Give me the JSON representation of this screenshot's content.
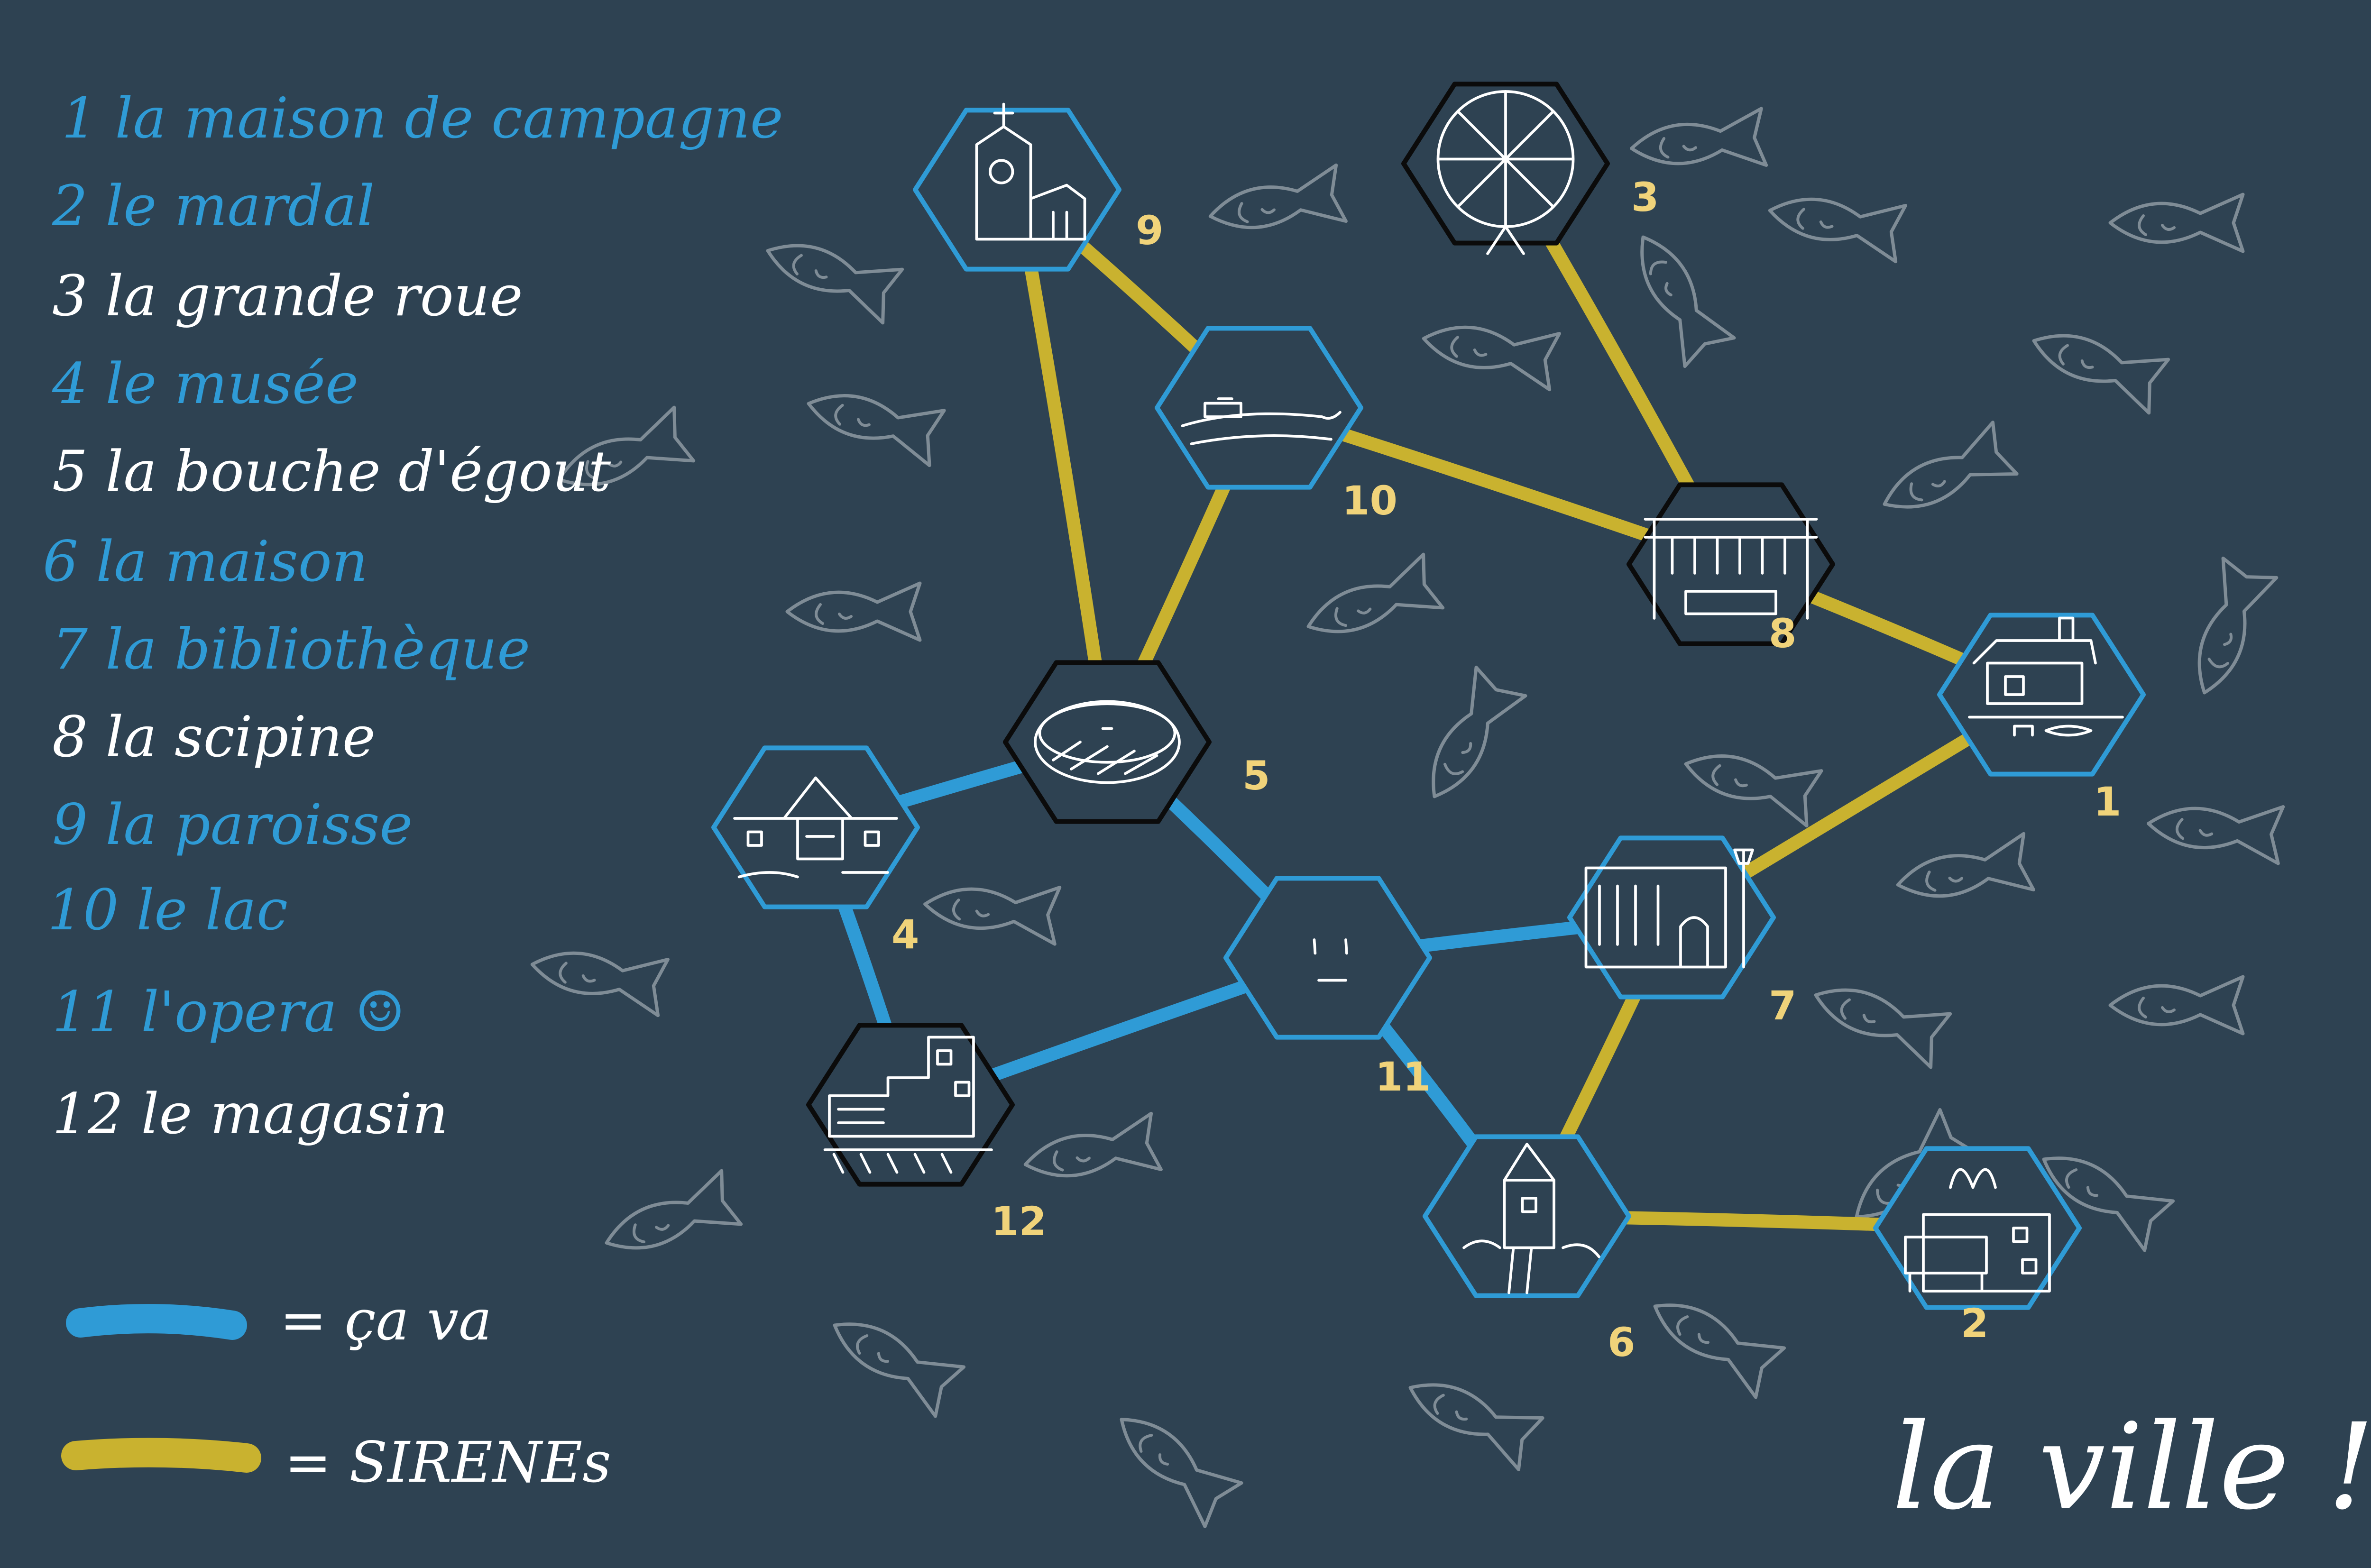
{
  "colors": {
    "background": "#2e4252",
    "blue": "#2f9bd6",
    "yellow": "#c9b22f",
    "white": "#ffffff",
    "black": "#0b0b0b",
    "fish": "#7f8c96",
    "numbers": "#f0d37a"
  },
  "legend": {
    "items": [
      {
        "id": "1",
        "text": "1 la maison de campagne",
        "color": "blue"
      },
      {
        "id": "2",
        "text": "2 le mardal",
        "color": "blue"
      },
      {
        "id": "3",
        "text": "3 la grande roue",
        "color": "white"
      },
      {
        "id": "4",
        "text": "4 le musée",
        "color": "blue"
      },
      {
        "id": "5",
        "text": "5 la bouche d'égout",
        "color": "white"
      },
      {
        "id": "6",
        "text": "6 la maison",
        "color": "blue"
      },
      {
        "id": "7",
        "text": "7 la bibliothèque",
        "color": "blue"
      },
      {
        "id": "8",
        "text": "8 la scipine",
        "color": "white"
      },
      {
        "id": "9",
        "text": "9 la paroisse",
        "color": "blue"
      },
      {
        "id": "10",
        "text": "10 le lac",
        "color": "blue"
      },
      {
        "id": "11",
        "text": "11 l'opera ☺",
        "color": "blue"
      },
      {
        "id": "12",
        "text": "12 le magasin",
        "color": "white"
      }
    ],
    "line_key": [
      {
        "line_color": "blue",
        "text": "= ça va"
      },
      {
        "line_color": "yellow",
        "text": "= SIRENEs"
      }
    ]
  },
  "title": "la ville !!",
  "nodes": [
    {
      "id": "1",
      "label": "1",
      "border": "blue",
      "icon": "country-house-icon"
    },
    {
      "id": "2",
      "label": "2",
      "border": "blue",
      "icon": "mcdonalds-icon"
    },
    {
      "id": "3",
      "label": "3",
      "border": "black",
      "icon": "ferris-wheel-icon"
    },
    {
      "id": "4",
      "label": "4",
      "border": "blue",
      "icon": "museum-icon"
    },
    {
      "id": "5",
      "label": "5",
      "border": "black",
      "icon": "manhole-icon"
    },
    {
      "id": "6",
      "label": "6",
      "border": "blue",
      "icon": "house-icon"
    },
    {
      "id": "7",
      "label": "7",
      "border": "blue",
      "icon": "library-icon"
    },
    {
      "id": "8",
      "label": "8",
      "border": "black",
      "icon": "pool-icon"
    },
    {
      "id": "9",
      "label": "9",
      "border": "blue",
      "icon": "church-icon"
    },
    {
      "id": "10",
      "label": "10",
      "border": "blue",
      "icon": "lake-icon"
    },
    {
      "id": "11",
      "label": "11",
      "border": "blue",
      "icon": "opera-face-icon"
    },
    {
      "id": "12",
      "label": "12",
      "border": "black",
      "icon": "shop-icon"
    }
  ],
  "edges": [
    {
      "from": "9",
      "to": "10",
      "type": "yellow"
    },
    {
      "from": "9",
      "to": "5",
      "type": "yellow"
    },
    {
      "from": "10",
      "to": "5",
      "type": "yellow"
    },
    {
      "from": "10",
      "to": "8",
      "type": "yellow"
    },
    {
      "from": "3",
      "to": "8",
      "type": "yellow"
    },
    {
      "from": "8",
      "to": "1",
      "type": "yellow"
    },
    {
      "from": "1",
      "to": "7",
      "type": "yellow"
    },
    {
      "from": "7",
      "to": "6",
      "type": "yellow"
    },
    {
      "from": "6",
      "to": "2",
      "type": "yellow"
    },
    {
      "from": "5",
      "to": "4",
      "type": "blue"
    },
    {
      "from": "5",
      "to": "11",
      "type": "blue"
    },
    {
      "from": "4",
      "to": "12",
      "type": "blue"
    },
    {
      "from": "12",
      "to": "11",
      "type": "blue"
    },
    {
      "from": "11",
      "to": "7",
      "type": "blue"
    },
    {
      "from": "11",
      "to": "6",
      "type": "blue"
    }
  ]
}
